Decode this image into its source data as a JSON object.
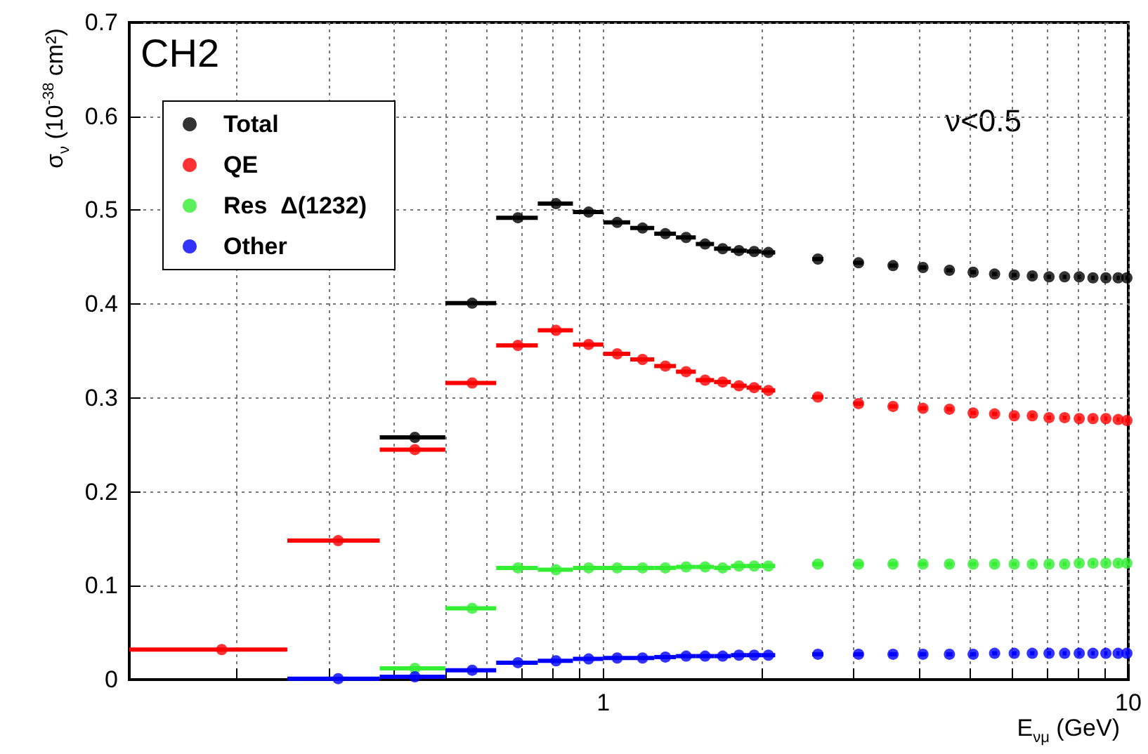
{
  "chart_data": {
    "type": "scatter",
    "xlabel": "E$_{νμ}$ (GeV)",
    "ylabel": "σ$_{ν}$ (10$^{-38}$ cm²)",
    "annotations": [
      "CH2",
      "ν<0.5"
    ],
    "x": [
      0.1875,
      0.3125,
      0.4375,
      0.5625,
      0.6875,
      0.8125,
      0.9375,
      1.0625,
      1.1875,
      1.3125,
      1.4375,
      1.5625,
      1.6875,
      1.8125,
      1.9375,
      2.0625,
      2.5625,
      3.0625,
      3.5625,
      4.0625,
      4.5625,
      5.0625,
      5.5625,
      6.0625,
      6.5625,
      7.0625,
      7.5625,
      8.0625,
      8.5625,
      9.0625,
      9.5625,
      9.9375
    ],
    "series": [
      {
        "name": "Total",
        "color": "#000000",
        "values": [
          null,
          null,
          0.258,
          0.401,
          0.492,
          0.507,
          0.498,
          0.487,
          0.481,
          0.475,
          0.471,
          0.464,
          0.459,
          0.457,
          0.456,
          0.455,
          0.448,
          0.444,
          0.441,
          0.439,
          0.436,
          0.434,
          0.432,
          0.431,
          0.43,
          0.429,
          0.429,
          0.429,
          0.428,
          0.428,
          0.428,
          0.428
        ],
        "xerrors": [
          null,
          null,
          0.0625,
          0.0625,
          0.0625,
          0.0625,
          0.0625,
          0.0625,
          0.0625,
          0.0625,
          0.0625,
          0.0625,
          0.0625,
          0.0625,
          0.0625,
          0.0625,
          0.0625,
          0.0625,
          0.0625,
          0.0625,
          0.0625,
          0.0625,
          0.0625,
          0.0625,
          0.0625,
          0.0625,
          0.0625,
          0.0625,
          0.0625,
          0.0625,
          0.0625,
          0.0625
        ]
      },
      {
        "name": "QE",
        "color": "#ff0000",
        "values": [
          0.032,
          0.148,
          0.245,
          0.316,
          0.356,
          0.372,
          0.357,
          0.347,
          0.341,
          0.334,
          0.328,
          0.319,
          0.317,
          0.313,
          0.311,
          0.308,
          0.301,
          0.294,
          0.291,
          0.289,
          0.288,
          0.284,
          0.283,
          0.281,
          0.281,
          0.279,
          0.279,
          0.278,
          0.278,
          0.278,
          0.277,
          0.276
        ],
        "xerrors": [
          0.0625,
          0.0625,
          0.0625,
          0.0625,
          0.0625,
          0.0625,
          0.0625,
          0.0625,
          0.0625,
          0.0625,
          0.0625,
          0.0625,
          0.0625,
          0.0625,
          0.0625,
          0.0625,
          0.0625,
          0.0625,
          0.0625,
          0.0625,
          0.0625,
          0.0625,
          0.0625,
          0.0625,
          0.0625,
          0.0625,
          0.0625,
          0.0625,
          0.0625,
          0.0625,
          0.0625,
          0.0625
        ]
      },
      {
        "name": "Res  Δ(1232)",
        "color": "#33ee33",
        "values": [
          null,
          null,
          0.012,
          0.076,
          0.119,
          0.117,
          0.119,
          0.119,
          0.119,
          0.119,
          0.12,
          0.12,
          0.119,
          0.121,
          0.121,
          0.121,
          0.123,
          0.123,
          0.123,
          0.123,
          0.123,
          0.123,
          0.123,
          0.123,
          0.123,
          0.123,
          0.123,
          0.124,
          0.124,
          0.124,
          0.124,
          0.124
        ],
        "xerrors": [
          null,
          null,
          0.0625,
          0.0625,
          0.0625,
          0.0625,
          0.0625,
          0.0625,
          0.0625,
          0.0625,
          0.0625,
          0.0625,
          0.0625,
          0.0625,
          0.0625,
          0.0625,
          0.0625,
          0.0625,
          0.0625,
          0.0625,
          0.0625,
          0.0625,
          0.0625,
          0.0625,
          0.0625,
          0.0625,
          0.0625,
          0.0625,
          0.0625,
          0.0625,
          0.0625,
          0.0625
        ]
      },
      {
        "name": "Other",
        "color": "#0000ff",
        "values": [
          null,
          0.001,
          0.003,
          0.01,
          0.018,
          0.02,
          0.022,
          0.023,
          0.023,
          0.024,
          0.025,
          0.025,
          0.025,
          0.026,
          0.026,
          0.026,
          0.027,
          0.027,
          0.027,
          0.027,
          0.027,
          0.027,
          0.028,
          0.028,
          0.028,
          0.028,
          0.028,
          0.028,
          0.028,
          0.028,
          0.028,
          0.028
        ],
        "xerrors": [
          null,
          0.0625,
          0.0625,
          0.0625,
          0.0625,
          0.0625,
          0.0625,
          0.0625,
          0.0625,
          0.0625,
          0.0625,
          0.0625,
          0.0625,
          0.0625,
          0.0625,
          0.0625,
          0.0625,
          0.0625,
          0.0625,
          0.0625,
          0.0625,
          0.0625,
          0.0625,
          0.0625,
          0.0625,
          0.0625,
          0.0625,
          0.0625,
          0.0625,
          0.0625,
          0.0625,
          0.0625
        ]
      }
    ],
    "xlim": [
      0.125,
      10
    ],
    "xticks": [
      {
        "value": 0.2,
        "label": null
      },
      {
        "value": 0.3,
        "label": null
      },
      {
        "value": 0.4,
        "label": null
      },
      {
        "value": 0.5,
        "label": null
      },
      {
        "value": 0.6,
        "label": null
      },
      {
        "value": 0.7,
        "label": null
      },
      {
        "value": 0.8,
        "label": null
      },
      {
        "value": 0.9,
        "label": null
      },
      1,
      {
        "value": 2,
        "label": null
      },
      {
        "value": 3,
        "label": null
      },
      {
        "value": 4,
        "label": null
      },
      {
        "value": 5,
        "label": null
      },
      {
        "value": 6,
        "label": null
      },
      {
        "value": 7,
        "label": null
      },
      {
        "value": 8,
        "label": null
      },
      {
        "value": 9,
        "label": null
      },
      10
    ],
    "ylim": [
      0,
      0.7
    ],
    "yticks": [
      0,
      0.1,
      0.2,
      0.3,
      0.4,
      0.5,
      0.6,
      0.7
    ],
    "log": "x",
    "grid": true,
    "legend": "top left",
    "marker": "circle"
  }
}
